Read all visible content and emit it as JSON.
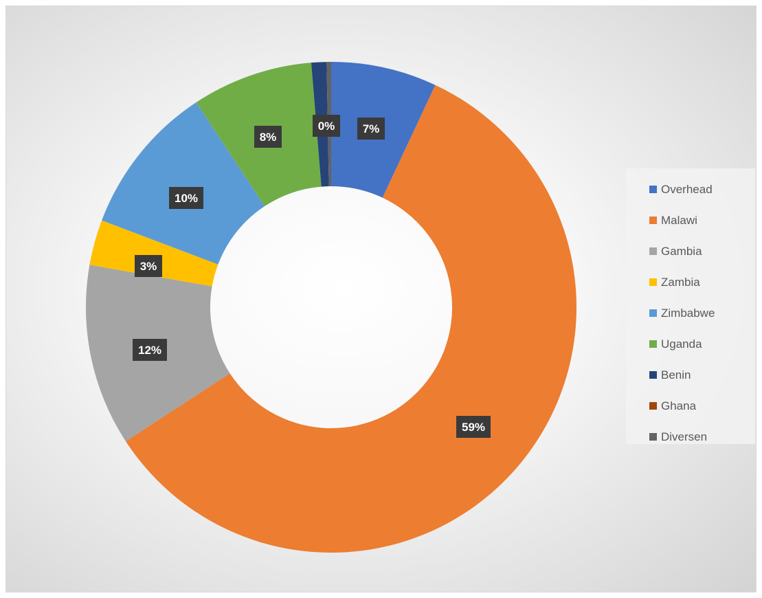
{
  "chart_data": {
    "type": "pie",
    "style": "donut",
    "title": "",
    "legend_position": "right",
    "slices": [
      {
        "name": "Overhead",
        "value": 7,
        "label": "7%",
        "color": "#4472c4"
      },
      {
        "name": "Malawi",
        "value": 59,
        "label": "59%",
        "color": "#ed7d31"
      },
      {
        "name": "Gambia",
        "value": 12,
        "label": "12%",
        "color": "#a5a5a5"
      },
      {
        "name": "Zambia",
        "value": 3,
        "label": "3%",
        "color": "#ffc000"
      },
      {
        "name": "Zimbabwe",
        "value": 10,
        "label": "10%",
        "color": "#5b9bd5"
      },
      {
        "name": "Uganda",
        "value": 8,
        "label": "8%",
        "color": "#70ad47"
      },
      {
        "name": "Benin",
        "value": 1,
        "label": "",
        "color": "#264478"
      },
      {
        "name": "Ghana",
        "value": 0,
        "label": "0%",
        "color": "#9e480e"
      },
      {
        "name": "Diversen",
        "value": 0.3,
        "label": "",
        "color": "#636363"
      }
    ]
  }
}
